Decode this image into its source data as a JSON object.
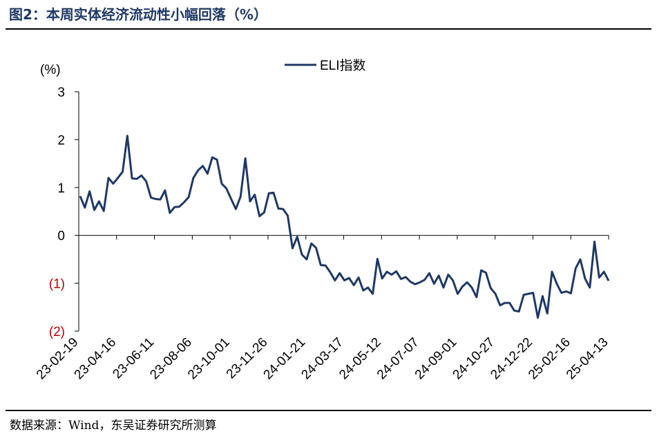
{
  "figure": {
    "title": "图2：本周实体经济流动性小幅回落（%）",
    "source": "数据来源：Wind，东吴证券研究所测算"
  },
  "colors": {
    "title": "#1f3864",
    "series": "#1f3864",
    "negative_tick": "#c00000",
    "axis": "#000000"
  },
  "chart_data": {
    "type": "line",
    "unit_label": "(%)",
    "legend_position": "top-center",
    "grid": false,
    "ylim": [
      -2,
      3
    ],
    "y_ticks": [
      {
        "value": 3,
        "label": "3"
      },
      {
        "value": 2,
        "label": "2"
      },
      {
        "value": 1,
        "label": "1"
      },
      {
        "value": 0,
        "label": "0"
      },
      {
        "value": -1,
        "label": "(1)"
      },
      {
        "value": -2,
        "label": "(2)"
      }
    ],
    "x_ticks": [
      "23-02-19",
      "23-04-16",
      "23-06-11",
      "23-08-06",
      "23-10-01",
      "23-11-26",
      "24-01-21",
      "24-03-17",
      "24-05-12",
      "24-07-07",
      "24-09-01",
      "24-10-27",
      "24-12-22",
      "25-02-16",
      "25-04-13"
    ],
    "series": [
      {
        "name": "ELI指数",
        "values": [
          0.82,
          0.58,
          0.92,
          0.53,
          0.71,
          0.51,
          1.2,
          1.08,
          1.2,
          1.33,
          2.08,
          1.19,
          1.18,
          1.25,
          1.13,
          0.79,
          0.76,
          0.75,
          0.94,
          0.47,
          0.59,
          0.6,
          0.69,
          0.8,
          1.2,
          1.36,
          1.45,
          1.29,
          1.63,
          1.58,
          1.08,
          0.98,
          0.76,
          0.55,
          0.81,
          1.61,
          0.71,
          0.85,
          0.4,
          0.48,
          0.88,
          0.89,
          0.56,
          0.55,
          0.41,
          -0.27,
          -0.03,
          -0.4,
          -0.5,
          -0.17,
          -0.26,
          -0.62,
          -0.63,
          -0.77,
          -0.94,
          -0.79,
          -0.94,
          -0.89,
          -1.04,
          -0.88,
          -1.15,
          -1.09,
          -1.22,
          -0.49,
          -0.9,
          -0.76,
          -0.82,
          -0.75,
          -0.91,
          -0.87,
          -0.97,
          -1.02,
          -0.98,
          -0.93,
          -0.79,
          -1.01,
          -0.84,
          -1.09,
          -0.82,
          -0.94,
          -1.22,
          -1.07,
          -0.98,
          -1.09,
          -1.29,
          -0.73,
          -0.78,
          -1.1,
          -1.22,
          -1.46,
          -1.41,
          -1.41,
          -1.57,
          -1.59,
          -1.24,
          -1.22,
          -1.2,
          -1.72,
          -1.27,
          -1.63,
          -0.76,
          -1.01,
          -1.2,
          -1.17,
          -1.21,
          -0.69,
          -0.5,
          -0.9,
          -1.09,
          -0.13,
          -0.88,
          -0.76,
          -0.95
        ]
      }
    ]
  }
}
